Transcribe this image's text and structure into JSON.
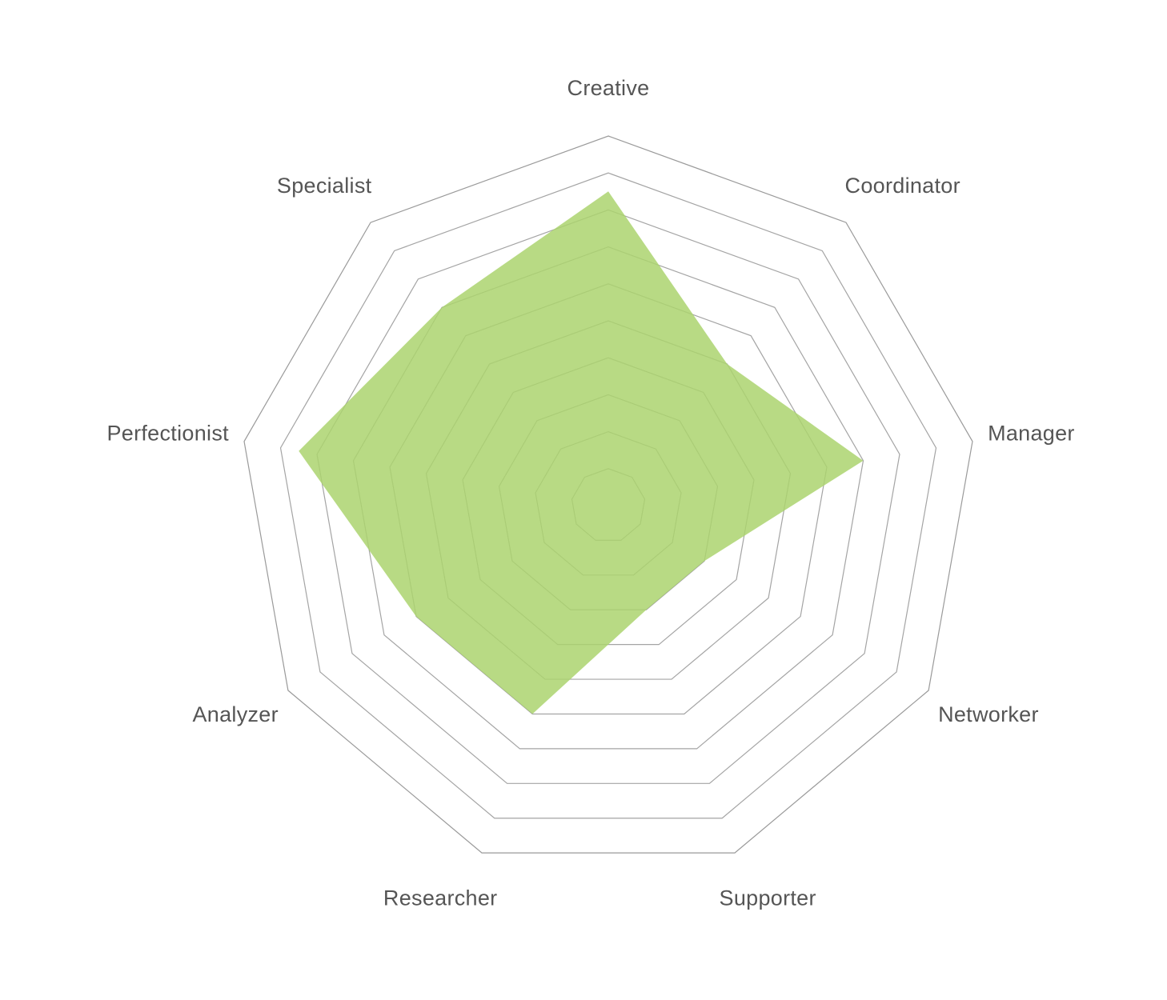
{
  "chart_data": {
    "type": "radar",
    "title": "",
    "axes": [
      "Creative",
      "Coordinator",
      "Manager",
      "Networker",
      "Supporter",
      "Researcher",
      "Analyzer",
      "Perfectionist",
      "Specialist"
    ],
    "series": [
      {
        "values": [
          8.5,
          5,
          7,
          3,
          3,
          6,
          6,
          8.5,
          7
        ]
      }
    ],
    "rmin": 0,
    "rmax": 10,
    "ring_count": 10,
    "grid": true,
    "legend": "none",
    "colors": {
      "fill": "#acd46f",
      "grid": "#9a9a9a",
      "label": "#555555"
    }
  }
}
